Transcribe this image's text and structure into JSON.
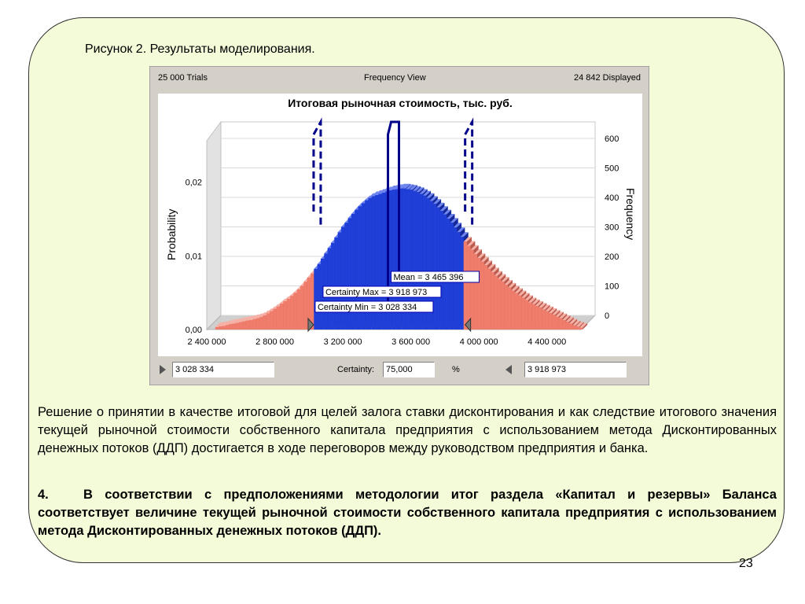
{
  "figure_caption": "Рисунок 2. Результаты моделирования.",
  "crystal_ball": {
    "trials": "25 000 Trials",
    "view": "Frequency View",
    "displayed": "24 842 Displayed",
    "certainty_label": "Certainty:",
    "certainty_value": "75,000",
    "percent_sign": "%",
    "min_field": "3 028 334",
    "max_field": "3 918 973"
  },
  "chart_data": {
    "type": "bar",
    "title": "Итоговая рыночная стоимость, тыс. руб.",
    "ylabel": "Probability",
    "ylabel_right": "Frequency",
    "x_ticks": [
      "2 400 000",
      "2 800 000",
      "3 200 000",
      "3 600 000",
      "4 000 000",
      "4 400 000"
    ],
    "x_tick_values": [
      2400000,
      2800000,
      3200000,
      3600000,
      4000000,
      4400000
    ],
    "xlim": [
      2400000,
      4600000
    ],
    "y_ticks": [
      "0,00",
      "0,01",
      "0,02"
    ],
    "y_tick_values": [
      0,
      0.01,
      0.02
    ],
    "y_right_ticks": [
      "0",
      "100",
      "200",
      "300",
      "400",
      "500",
      "600"
    ],
    "y_right_tick_values": [
      0,
      100,
      200,
      300,
      400,
      500,
      600
    ],
    "ylim_right": [
      0,
      640
    ],
    "bins_start": 2450000,
    "bin_width": 20000,
    "frequencies": [
      8,
      10,
      12,
      15,
      18,
      20,
      22,
      25,
      28,
      30,
      32,
      35,
      38,
      42,
      48,
      55,
      62,
      70,
      78,
      88,
      96,
      104,
      114,
      124,
      136,
      148,
      162,
      176,
      190,
      206,
      222,
      240,
      258,
      276,
      294,
      312,
      330,
      348,
      362,
      378,
      392,
      406,
      418,
      428,
      438,
      446,
      452,
      456,
      460,
      464,
      468,
      472,
      474,
      476,
      478,
      478,
      476,
      474,
      470,
      466,
      460,
      454,
      446,
      436,
      426,
      414,
      402,
      390,
      376,
      362,
      346,
      330,
      314,
      298,
      284,
      270,
      256,
      242,
      230,
      218,
      206,
      194,
      182,
      172,
      162,
      152,
      142,
      132,
      124,
      116,
      108,
      100,
      92,
      86,
      80,
      74,
      68,
      62,
      56,
      50,
      44,
      38,
      32,
      26,
      20,
      14,
      10,
      6
    ],
    "certainty_min": 3028334,
    "certainty_max": 3918973,
    "mean": 3465396,
    "annotations": {
      "mean": "Mean = 3 465 396",
      "certainty_max": "Certainty Max = 3 918 973",
      "certainty_min": "Certainty Min = 3 028 334"
    },
    "colors": {
      "inside": "#1f3fd8",
      "outside": "#f07c6c",
      "marker": "#00008b"
    }
  },
  "paragraph1": "Решение о принятии в качестве итоговой для целей залога ставки дисконтирования и как следствие итогового значения текущей рыночной стоимости собственного капитала предприятия с использованием метода Дисконтированных денежных потоков (ДДП) достигается в ходе переговоров между руководством предприятия и банка.",
  "paragraph2_number": "4.",
  "paragraph2": "В соответствии с предположениями методологии итог раздела «Капитал и резервы» Баланса соответствует величине текущей рыночной стоимости собственного капитала предприятия с использованием метода Дисконтированных денежных потоков (ДДП).",
  "page_number": "23"
}
